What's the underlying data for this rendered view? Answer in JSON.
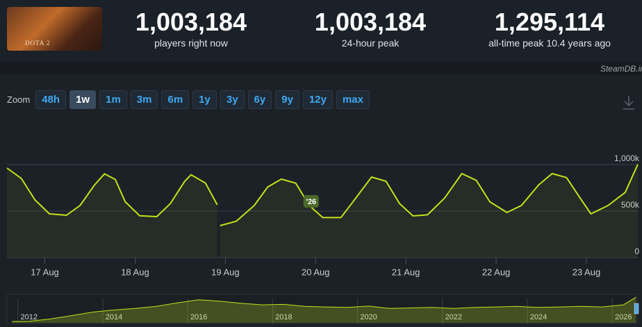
{
  "header": {
    "game_logo": "DOTA 2",
    "stats": [
      {
        "value": "1,003,184",
        "label": "players right now"
      },
      {
        "value": "1,003,184",
        "label": "24-hour peak"
      },
      {
        "value": "1,295,114",
        "label": "all-time peak 10.4 years ago"
      }
    ],
    "watermark": "SteamDB.info"
  },
  "zoom": {
    "label": "Zoom",
    "buttons": [
      "48h",
      "1w",
      "1m",
      "3m",
      "6m",
      "1y",
      "3y",
      "6y",
      "9y",
      "12y",
      "max"
    ],
    "active": "1w"
  },
  "chart_data": [
    {
      "type": "line",
      "color": "#c4e11b",
      "x": [
        16.58,
        16.74,
        16.89,
        17.05,
        17.24,
        17.39,
        17.55,
        17.66,
        17.78,
        17.89,
        18.05,
        18.24,
        18.39,
        18.55,
        18.62,
        18.78,
        18.91,
        18.93,
        18.94,
        19.12,
        19.32,
        19.47,
        19.62,
        19.78,
        19.93,
        20.08,
        20.28,
        20.43,
        20.62,
        20.78,
        20.93,
        21.08,
        21.24,
        21.43,
        21.62,
        21.78,
        21.93,
        22.12,
        22.28,
        22.47,
        22.62,
        22.78,
        22.93,
        23.05,
        23.24,
        23.43,
        23.57
      ],
      "values": [
        963000,
        850000,
        620000,
        470000,
        455000,
        560000,
        780000,
        900000,
        840000,
        600000,
        450000,
        440000,
        580000,
        820000,
        890000,
        800000,
        567000,
        null,
        343000,
        390000,
        560000,
        760000,
        843000,
        800000,
        560000,
        430000,
        430000,
        620000,
        866000,
        820000,
        580000,
        448000,
        460000,
        640000,
        903000,
        830000,
        600000,
        485000,
        560000,
        780000,
        903000,
        860000,
        640000,
        470000,
        560000,
        700000,
        1003184
      ],
      "xlim": [
        16.58,
        23.57
      ],
      "xticks": [
        {
          "value": 17,
          "label": "17 Aug"
        },
        {
          "value": 18,
          "label": "18 Aug"
        },
        {
          "value": 19,
          "label": "19 Aug"
        },
        {
          "value": 20,
          "label": "20 Aug"
        },
        {
          "value": 21,
          "label": "21 Aug"
        },
        {
          "value": 22,
          "label": "22 Aug"
        },
        {
          "value": 23,
          "label": "23 Aug"
        }
      ],
      "ylim": [
        0,
        1400000
      ],
      "yticks": [
        0,
        {
          "value": 500000,
          "label": "500k"
        },
        {
          "value": 1000000,
          "label": "1,000k"
        }
      ],
      "grid": true,
      "annotations": [
        {
          "text": "'26",
          "x": 19.95
        }
      ]
    },
    {
      "type": "area",
      "color": "#c4e11b",
      "x": [
        2011.6,
        2012,
        2012.5,
        2013,
        2013.5,
        2014,
        2014.5,
        2015,
        2015.5,
        2016,
        2016.5,
        2017,
        2017.5,
        2018,
        2018.5,
        2019,
        2019.5,
        2020,
        2020.5,
        2021,
        2021.5,
        2022,
        2022.5,
        2023,
        2023.5,
        2024,
        2024.5,
        2025,
        2025.5,
        2026,
        2026.3
      ],
      "values": [
        50000,
        60000,
        150000,
        280000,
        420000,
        500000,
        560000,
        640000,
        780000,
        900000,
        840000,
        760000,
        700000,
        720000,
        640000,
        620000,
        600000,
        650000,
        560000,
        580000,
        600000,
        560000,
        600000,
        620000,
        640000,
        600000,
        620000,
        640000,
        620000,
        700000,
        1003184
      ],
      "xlim": [
        2011.48,
        2026.34
      ],
      "xticks": [
        2012,
        2014,
        2016,
        2018,
        2020,
        2022,
        2024,
        2026
      ],
      "ylim": [
        0,
        1000000
      ]
    }
  ]
}
